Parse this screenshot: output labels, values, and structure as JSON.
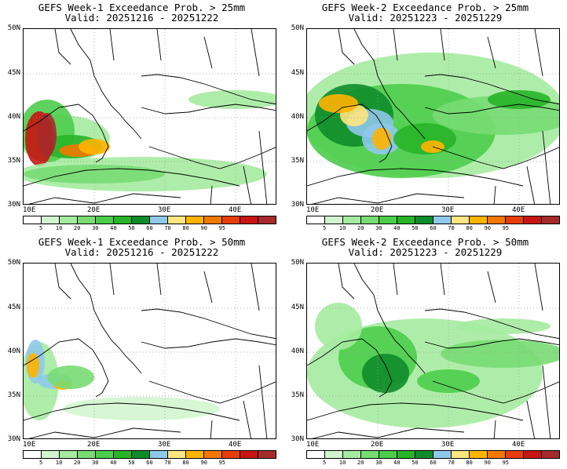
{
  "panels": [
    {
      "title": "GEFS Week-1 Exceedance Prob. > 25mm",
      "valid": "Valid: 20251216 - 20251222"
    },
    {
      "title": "GEFS Week-2 Exceedance Prob. > 25mm",
      "valid": "Valid: 20251223 - 20251229"
    },
    {
      "title": "GEFS Week-1 Exceedance Prob. > 50mm",
      "valid": "Valid: 20251216 - 20251222"
    },
    {
      "title": "GEFS Week-2 Exceedance Prob. > 50mm",
      "valid": "Valid: 20251223 - 20251229"
    }
  ],
  "lat_labels": [
    "50N",
    "45N",
    "40N",
    "35N",
    "30N"
  ],
  "lon_labels": [
    "10E",
    "20E",
    "30E",
    "40E"
  ],
  "colorbar": {
    "labels": [
      "5",
      "10",
      "20",
      "30",
      "40",
      "50",
      "60",
      "70",
      "80",
      "90",
      "95"
    ],
    "colors": [
      "#ffffff",
      "#d2f5cf",
      "#a5eba0",
      "#78dc73",
      "#4ccd4b",
      "#28b428",
      "#0f8c2a",
      "#8fc9ea",
      "#ffe680",
      "#ffb400",
      "#f27800",
      "#e83c0a",
      "#c81414",
      "#a52a2a"
    ]
  }
}
